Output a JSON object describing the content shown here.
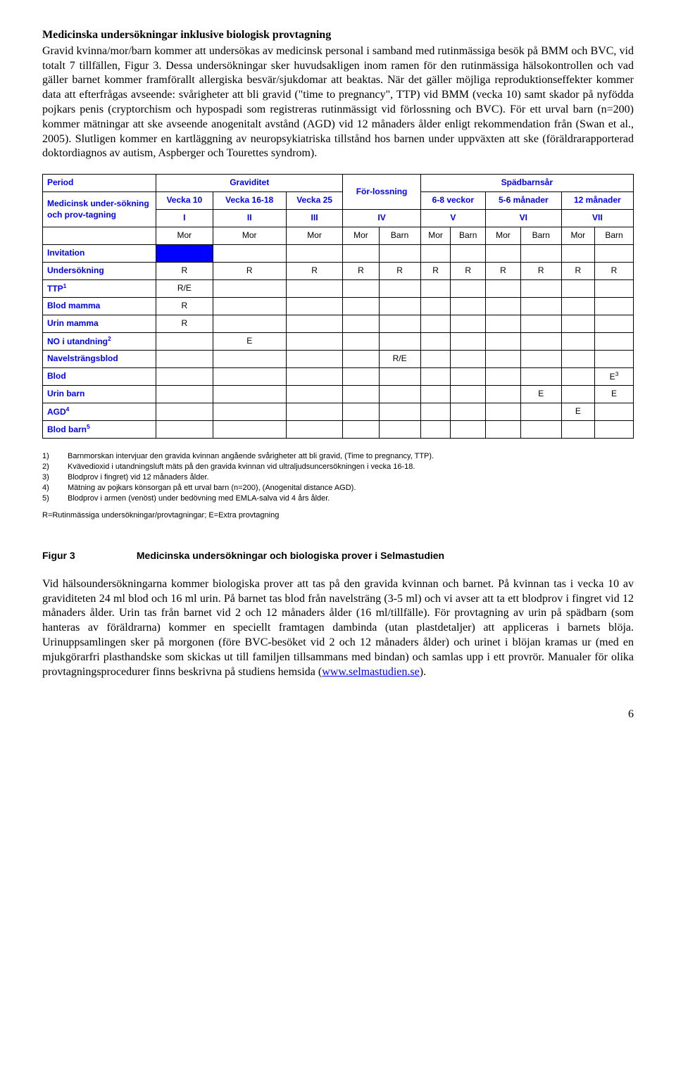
{
  "section_title": "Medicinska undersökningar inklusive biologisk provtagning",
  "para1": "Gravid kvinna/mor/barn kommer att undersökas av medicinsk personal i samband med rutinmässiga besök på BMM och BVC, vid totalt 7 tillfällen, Figur 3. Dessa undersökningar sker huvudsakligen inom ramen för den rutinmässiga hälsokontrollen och vad gäller barnet kommer framförallt allergiska besvär/sjukdomar att beaktas. När det gäller möjliga reproduktionseffekter kommer data att efterfrågas avseende: svårigheter att bli gravid (\"time to pregnancy\", TTP) vid BMM (vecka 10) samt skador på nyfödda pojkars penis (cryptorchism och hypospadi som registreras rutinmässigt vid förlossning och BVC). För ett urval barn (n=200) kommer mätningar att ske avseende anogenitalt avstånd (AGD) vid 12 månaders ålder enligt rekommendation från (Swan et al., 2005). Slutligen kommer en kartläggning av neuropsykiatriska tillstånd hos barnen under uppväxten att ske (föräldrarapporterad doktordiagnos av autism, Aspberger och Tourettes syndrom).",
  "table": {
    "period_label": "Period",
    "graviditet_label": "Graviditet",
    "forlossning_label": "För-lossning",
    "spadbarns_label": "Spädbarnsår",
    "med_label": "Medicinsk under-sökning och prov-tagning",
    "vecka10": "Vecka 10",
    "vecka1618": "Vecka 16-18",
    "vecka25": "Vecka 25",
    "v68": "6-8 veckor",
    "m56": "5-6 månader",
    "m12": "12 månader",
    "roman": [
      "I",
      "II",
      "III",
      "IV",
      "V",
      "VI",
      "VII"
    ],
    "mor": "Mor",
    "barn": "Barn",
    "rows": [
      {
        "label": "Invitation",
        "sup": "",
        "cells": [
          "BLUE",
          "",
          "",
          "",
          "",
          "",
          "",
          "",
          "",
          "",
          ""
        ]
      },
      {
        "label": "Undersökning",
        "sup": "",
        "cells": [
          "R",
          "R",
          "R",
          "R",
          "R",
          "R",
          "R",
          "R",
          "R",
          "R",
          "R"
        ]
      },
      {
        "label": "TTP",
        "sup": "1",
        "cells": [
          "R/E",
          "",
          "",
          "",
          "",
          "",
          "",
          "",
          "",
          "",
          ""
        ]
      },
      {
        "label": "Blod mamma",
        "sup": "",
        "cells": [
          "R",
          "",
          "",
          "",
          "",
          "",
          "",
          "",
          "",
          "",
          ""
        ]
      },
      {
        "label": "Urin mamma",
        "sup": "",
        "cells": [
          "R",
          "",
          "",
          "",
          "",
          "",
          "",
          "",
          "",
          "",
          ""
        ]
      },
      {
        "label": "NO i utandning",
        "sup": "2",
        "cells": [
          "",
          "E",
          "",
          "",
          "",
          "",
          "",
          "",
          "",
          "",
          ""
        ]
      },
      {
        "label": "Navelsträngsblod",
        "sup": "",
        "cells": [
          "",
          "",
          "",
          "",
          "R/E",
          "",
          "",
          "",
          "",
          "",
          ""
        ]
      },
      {
        "label": "Blod",
        "sup": "",
        "cells": [
          "",
          "",
          "",
          "",
          "",
          "",
          "",
          "",
          "",
          "",
          "E³"
        ]
      },
      {
        "label": "Urin barn",
        "sup": "",
        "cells": [
          "",
          "",
          "",
          "",
          "",
          "",
          "",
          "",
          "E",
          "",
          "E"
        ]
      },
      {
        "label": "AGD",
        "sup": "4",
        "cells": [
          "",
          "",
          "",
          "",
          "",
          "",
          "",
          "",
          "",
          "E",
          ""
        ]
      },
      {
        "label": "Blod barn",
        "sup": "5",
        "cells": [
          "",
          "",
          "",
          "",
          "",
          "",
          "",
          "",
          "",
          "",
          ""
        ]
      }
    ]
  },
  "footnotes": [
    {
      "n": "1)",
      "t": "Barnmorskan intervjuar den gravida kvinnan angående svårigheter att bli gravid, (Time to pregnancy, TTP)."
    },
    {
      "n": "2)",
      "t": "Kvävedioxid i utandningsluft mäts på den gravida kvinnan vid ultraljudsuncersökningen i vecka 16-18."
    },
    {
      "n": "3)",
      "t": "Blodprov i fingret) vid 12 månaders ålder."
    },
    {
      "n": "4)",
      "t": "Mätning av pojkars könsorgan på ett urval barn (n=200), (Anogenital distance AGD)."
    },
    {
      "n": "5)",
      "t": "Blodprov i armen (venöst) under bedövning med EMLA-salva vid 4 års ålder."
    }
  ],
  "legend": "R=Rutinmässiga undersökningar/provtagningar; E=Extra provtagning",
  "figure_label": "Figur 3",
  "figure_caption": "Medicinska undersökningar och biologiska prover i Selmastudien",
  "para2_pre": "Vid hälsoundersökningarna kommer biologiska prover att tas på den gravida kvinnan och barnet. På kvinnan tas i vecka 10 av graviditeten 24 ml blod och 16 ml urin. På barnet tas blod från navelsträng (3-5 ml) och vi avser att ta ett blodprov i fingret vid 12 månaders ålder. Urin tas från barnet vid 2 och 12 månaders ålder (16 ml/tillfälle). För provtagning av urin på spädbarn (som hanteras av föräldrarna) kommer en speciellt framtagen dambinda (utan plastdetaljer) att appliceras i barnets blöja. Urinuppsamlingen sker på morgonen (före BVC-besöket vid 2 och 12 månaders ålder) och urinet i blöjan kramas ur (med en mjukgörarfri plasthandske som skickas ut till familjen tillsammans med bindan) och samlas upp i ett provrör. Manualer för olika provtagningsprocedurer finns beskrivna på studiens hemsida (",
  "link_text": "www.selmastudien.se",
  "para2_post": ").",
  "page_num": "6"
}
